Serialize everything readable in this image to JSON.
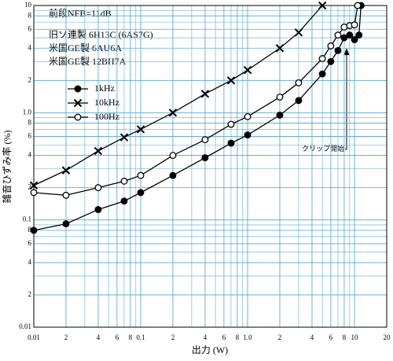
{
  "chart_data": {
    "type": "line",
    "x_label": "出力 (W)",
    "y_label": "雑音ひずみ率 (%)",
    "annotations": [
      "前段NFB=11dB",
      "旧ソ連製 6H13C (6AS7G)",
      "米国GE製 6AU6A",
      "米国GE製 12BH7A"
    ],
    "clip_label": "クリップ開始",
    "xscale": "log",
    "yscale": "log",
    "grid": true,
    "minor_grid": true,
    "grid_color": "#5aaad6",
    "legend": "upper-left",
    "xlim": [
      0.01,
      20
    ],
    "ylim": [
      0.01,
      10
    ],
    "xticks": [
      {
        "value": 0.01,
        "label": "0.01"
      },
      {
        "value": 0.02,
        "label": "2"
      },
      {
        "value": 0.04,
        "label": "4"
      },
      {
        "value": 0.06,
        "label": "6"
      },
      {
        "value": 0.08,
        "label": "8"
      },
      {
        "value": 0.1,
        "label": "0.1"
      },
      {
        "value": 0.2,
        "label": "2"
      },
      {
        "value": 0.4,
        "label": "4"
      },
      {
        "value": 0.6,
        "label": "6"
      },
      {
        "value": 0.8,
        "label": "8"
      },
      {
        "value": 1,
        "label": "1.0"
      },
      2,
      4,
      6,
      8,
      10,
      20
    ],
    "yticks": [
      {
        "value": 0.01,
        "label": "0.01"
      },
      {
        "value": 0.02,
        "label": "2"
      },
      {
        "value": 0.04,
        "label": "4"
      },
      {
        "value": 0.06,
        "label": "6"
      },
      {
        "value": 0.08,
        "label": "8"
      },
      {
        "value": 0.1,
        "label": "0.1"
      },
      {
        "value": 0.2,
        "label": "2"
      },
      {
        "value": 0.4,
        "label": "4"
      },
      {
        "value": 0.6,
        "label": "6"
      },
      {
        "value": 0.8,
        "label": "8"
      },
      {
        "value": 1,
        "label": "1.0"
      },
      2,
      4,
      6,
      8,
      10
    ],
    "series": [
      {
        "name": "1kHz",
        "color": "#000000",
        "marker": "filled-circle",
        "x": [
          0.01,
          0.02,
          0.04,
          0.07,
          0.1,
          0.2,
          0.4,
          0.7,
          1,
          2,
          3,
          5,
          6,
          7,
          8,
          9,
          10,
          11,
          11.5
        ],
        "values": [
          0.08,
          0.092,
          0.125,
          0.15,
          0.18,
          0.26,
          0.38,
          0.52,
          0.62,
          0.95,
          1.3,
          2.3,
          3.0,
          3.8,
          5.0,
          5.3,
          4.8,
          5.3,
          10
        ]
      },
      {
        "name": "10kHz",
        "color": "#000000",
        "marker": "cross",
        "x": [
          0.01,
          0.02,
          0.04,
          0.07,
          0.1,
          0.2,
          0.4,
          0.7,
          1,
          2,
          3,
          5
        ],
        "values": [
          0.21,
          0.29,
          0.44,
          0.59,
          0.7,
          1.0,
          1.5,
          2.0,
          2.5,
          4.0,
          5.6,
          10
        ]
      },
      {
        "name": "100Hz",
        "color": "#000000",
        "marker": "open-circle",
        "x": [
          0.01,
          0.02,
          0.04,
          0.07,
          0.1,
          0.2,
          0.4,
          0.7,
          1,
          2,
          3,
          5,
          6,
          7,
          8,
          9,
          10,
          10.7
        ],
        "values": [
          0.18,
          0.17,
          0.2,
          0.23,
          0.26,
          0.4,
          0.56,
          0.78,
          0.92,
          1.4,
          1.9,
          3.2,
          4.2,
          5.3,
          6.3,
          6.5,
          6.6,
          10
        ]
      }
    ]
  }
}
